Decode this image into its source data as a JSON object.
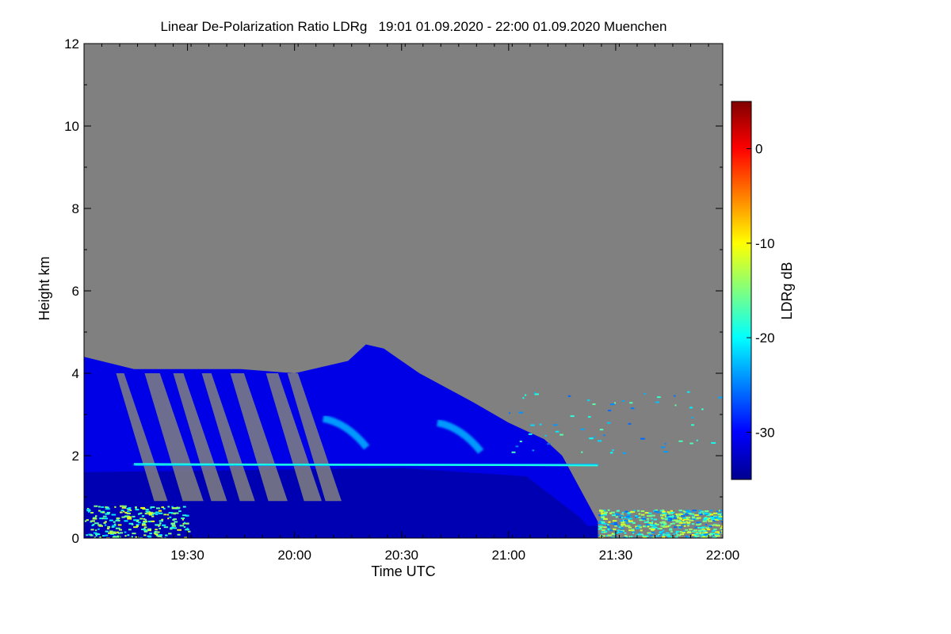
{
  "chart_data": {
    "type": "heatmap",
    "title": "Linear De-Polarization Ratio LDRg   19:01 01.09.2020 - 22:00 01.09.2020 Muenchen",
    "xlabel": "Time UTC",
    "ylabel": "Height km",
    "x_ticks": [
      "19:30",
      "20:00",
      "20:30",
      "21:00",
      "21:30",
      "22:00"
    ],
    "y_ticks": [
      "0",
      "2",
      "4",
      "6",
      "8",
      "10",
      "12"
    ],
    "xlim": [
      "19:01",
      "22:00"
    ],
    "ylim": [
      0,
      12
    ],
    "no_data_color": "#808080",
    "colorbar": {
      "label": "LDRg dB",
      "ticks": [
        "0",
        "-10",
        "-20",
        "-30"
      ],
      "range": [
        -35,
        5
      ],
      "colormap": "jet"
    },
    "features": [
      {
        "desc": "cloud top envelope (km)",
        "time": [
          "19:01",
          "19:15",
          "19:30",
          "19:45",
          "20:00",
          "20:15",
          "20:20",
          "20:25",
          "20:35",
          "20:50",
          "21:00",
          "21:10",
          "21:15"
        ],
        "height": [
          4.4,
          4.1,
          4.1,
          4.1,
          4.0,
          4.3,
          4.7,
          4.6,
          4.0,
          3.3,
          2.8,
          2.4,
          2.0
        ]
      },
      {
        "desc": "bright layer",
        "height_km": 1.8,
        "from": "19:15",
        "to": "21:25",
        "ldr_db": -23
      },
      {
        "desc": "cloud base near surface",
        "height_km": 0.1,
        "from": "19:01",
        "to": "21:25",
        "ldr_db": -33
      },
      {
        "desc": "near-surface aerosol",
        "height_km": [
          0,
          0.7
        ],
        "from": "21:25",
        "to": "22:00",
        "ldr_db": -18
      }
    ]
  }
}
